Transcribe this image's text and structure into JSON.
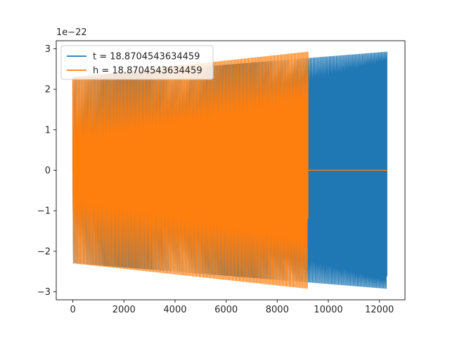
{
  "chart_data": {
    "type": "line",
    "title": "",
    "xlabel": "",
    "ylabel": "",
    "xlim": [
      -650,
      13000
    ],
    "ylim": [
      -3.2,
      3.2
    ],
    "y_scale_label": "1e−22",
    "x_ticks": [
      0,
      2000,
      4000,
      6000,
      8000,
      10000,
      12000
    ],
    "x_tick_labels": [
      "0",
      "2000",
      "4000",
      "6000",
      "8000",
      "10000",
      "12000"
    ],
    "y_ticks": [
      -3,
      -2,
      -1,
      0,
      1,
      2,
      3
    ],
    "y_tick_labels": [
      "−3",
      "−2",
      "−1",
      "0",
      "1",
      "2",
      "3"
    ],
    "grid": false,
    "legend_position": "upper-left",
    "series": [
      {
        "name": "t = 18.8704543634459",
        "color": "#1f77b4",
        "x_start": 0,
        "x_end": 12290,
        "cycles": 230,
        "amplitude_start": 2.3,
        "amplitude_end": 2.93,
        "inner_start": 0.0,
        "inner_end": 2.62
      },
      {
        "name": "h = 18.8704543634459",
        "color": "#ff7f0e",
        "x_start": 0,
        "x_end": 9200,
        "cycles": 170,
        "amplitude_start": 2.3,
        "amplitude_end": 2.93,
        "inner_start": 0.0,
        "inner_end": 1.2,
        "tail_value": 0,
        "tail_x_end": 12290
      }
    ]
  }
}
